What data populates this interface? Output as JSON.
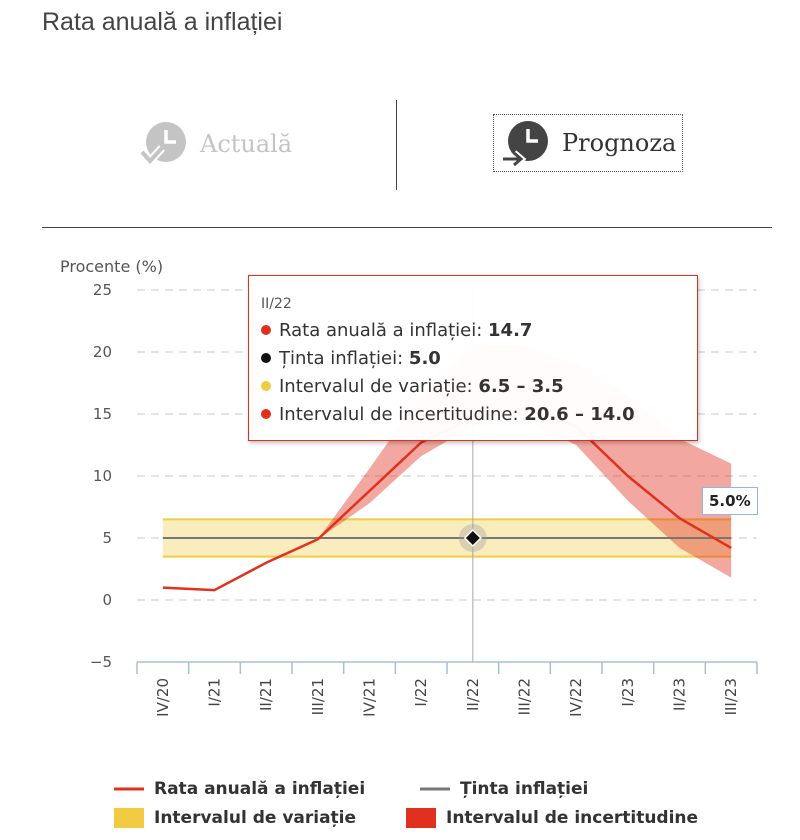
{
  "page": {
    "title": "Rata anuală a inflației"
  },
  "switcher": {
    "actual_label": "Actuală",
    "forecast_label": "Prognoza",
    "actual_icon": "clock-check-icon",
    "forecast_icon": "clock-arrow-icon"
  },
  "chart_data": {
    "type": "line",
    "ylabel": "Procente (%)",
    "ylim": [
      -5,
      25
    ],
    "yticks": [
      25,
      20,
      15,
      10,
      5,
      0,
      -5
    ],
    "ytick_labels": [
      "25",
      "20",
      "15",
      "10",
      "5",
      "0",
      "−5"
    ],
    "categories": [
      "IV/20",
      "I/21",
      "II/21",
      "III/21",
      "IV/21",
      "I/22",
      "II/22",
      "III/22",
      "IV/22",
      "I/23",
      "II/23",
      "III/23"
    ],
    "grid": "horizontal dashed",
    "series": [
      {
        "name": "Rata anuală a inflației",
        "type": "line",
        "color": "#e0301e",
        "values": [
          1.0,
          0.8,
          3.0,
          4.9,
          8.8,
          12.7,
          14.7,
          15.5,
          14.0,
          10.0,
          6.6,
          4.2
        ]
      },
      {
        "name": "Ținta inflației",
        "type": "line",
        "color": "#777777",
        "values": [
          5,
          5,
          5,
          5,
          5,
          5,
          5,
          5,
          5,
          5,
          5,
          5
        ]
      },
      {
        "name": "Intervalul de variație",
        "type": "range",
        "color": "#f2cb43",
        "low": [
          3.5,
          3.5,
          3.5,
          3.5,
          3.5,
          3.5,
          3.5,
          3.5,
          3.5,
          3.5,
          3.5,
          3.5
        ],
        "high": [
          6.5,
          6.5,
          6.5,
          6.5,
          6.5,
          6.5,
          6.5,
          6.5,
          6.5,
          6.5,
          6.5,
          6.5
        ]
      },
      {
        "name": "Intervalul de incertitudine",
        "type": "range",
        "color": "#e0301e",
        "start_index": 3,
        "low": [
          4.9,
          7.8,
          11.6,
          14.0,
          14.5,
          12.5,
          8.0,
          4.2,
          1.8
        ],
        "high": [
          4.9,
          10.6,
          16.5,
          20.6,
          20.5,
          19.0,
          16.5,
          13.0,
          11.0
        ]
      }
    ],
    "legend": [
      {
        "label": "Rata anuală a inflației",
        "symbol": "line",
        "color": "#e0301e"
      },
      {
        "label": "Ținta inflației",
        "symbol": "line",
        "color": "#777777"
      },
      {
        "label": "Intervalul de variație",
        "symbol": "box",
        "color": "#f2cb43"
      },
      {
        "label": "Intervalul de incertitudine",
        "symbol": "box",
        "color": "#e0301e"
      }
    ],
    "legend_position": "bottom",
    "tooltip": {
      "header": "II/22",
      "rows": [
        {
          "label": "Rata anuală a inflației: ",
          "value": "14.7",
          "color": "#e0301e"
        },
        {
          "label": "Ținta inflației: ",
          "value": "5.0",
          "color": "#111111"
        },
        {
          "label": "Intervalul de variație: ",
          "value": "6.5 – 3.5",
          "color": "#f2cb43"
        },
        {
          "label": "Intervalul de incertitudine: ",
          "value": "20.6 – 14.0",
          "color": "#e0301e"
        }
      ]
    },
    "last_value_label": "5.0%"
  }
}
